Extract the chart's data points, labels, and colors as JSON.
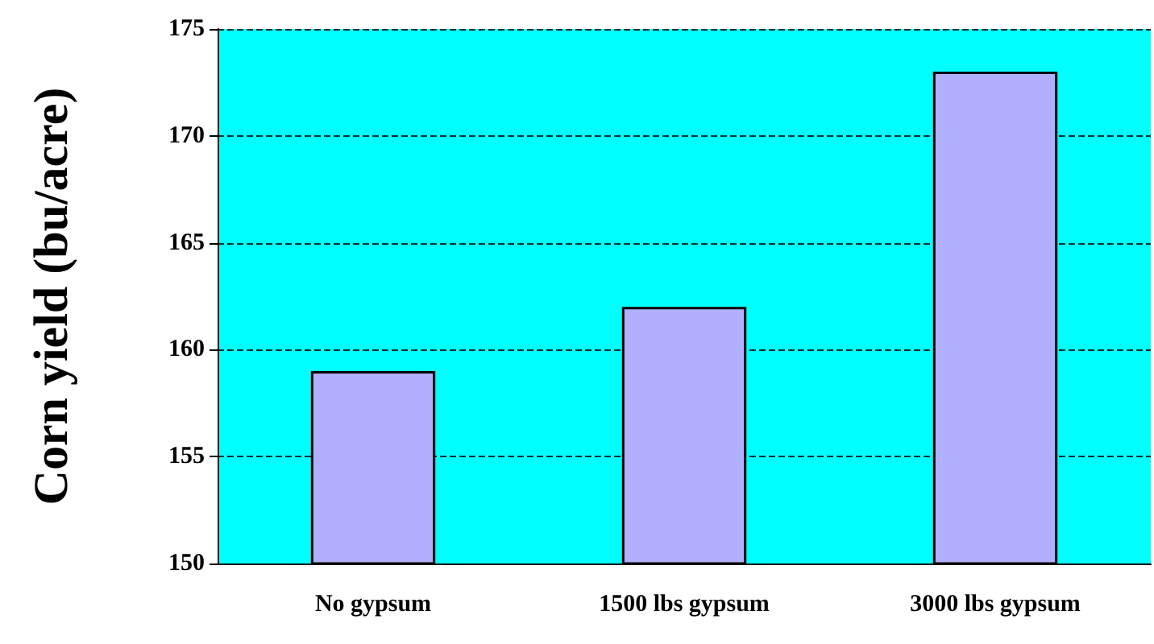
{
  "chart_data": {
    "type": "bar",
    "ylabel": "Corn yield (bu/acre)",
    "categories": [
      "No gypsum",
      "1500 lbs gypsum",
      "3000 lbs gypsum"
    ],
    "values": [
      159,
      162,
      173
    ],
    "color": "#b0b0ff",
    "ylim": [
      150,
      175
    ],
    "yticks": [
      150,
      155,
      160,
      165,
      170,
      175
    ],
    "grid": "y",
    "line_style": "dashed"
  }
}
